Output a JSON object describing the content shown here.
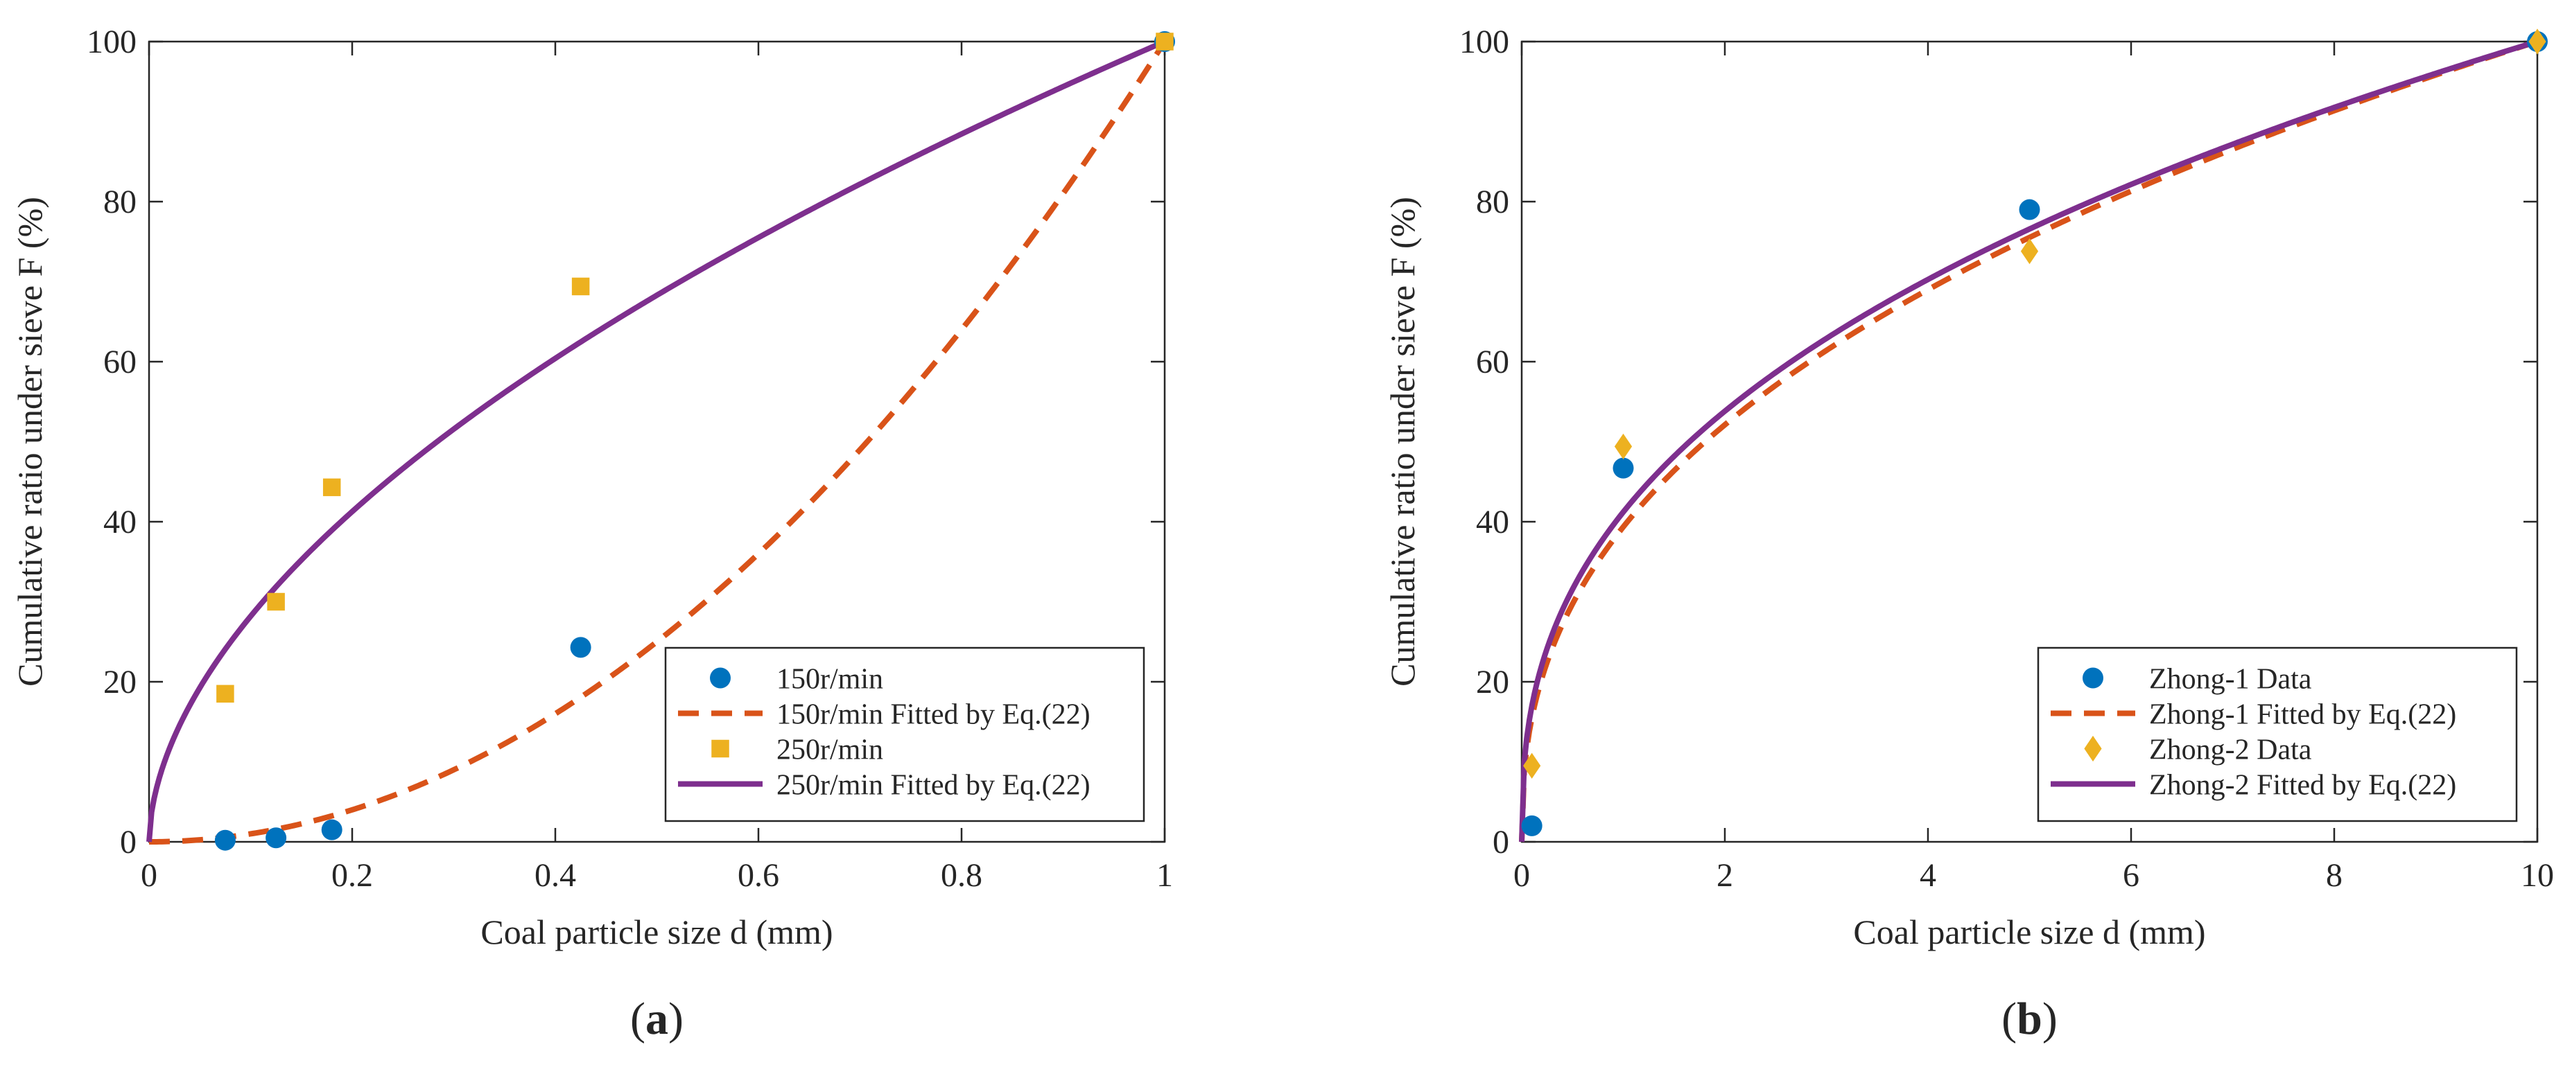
{
  "colors": {
    "blue": "#0072BD",
    "orange": "#D95319",
    "yellow": "#EDB120",
    "purple": "#7E2F8E"
  },
  "chart_data": [
    {
      "type": "line",
      "panel": "(a)",
      "panel_letter": "a",
      "xlabel": "Coal particle size d (mm)",
      "ylabel": "Cumulative ratio under sieve F (%)",
      "xlim": [
        0,
        1
      ],
      "ylim": [
        0,
        100
      ],
      "xticks": [
        0,
        0.2,
        0.4,
        0.6,
        0.8,
        1
      ],
      "xtick_labels": [
        "0",
        "0.2",
        "0.4",
        "0.6",
        "0.8",
        "1"
      ],
      "yticks": [
        0,
        20,
        40,
        60,
        80,
        100
      ],
      "ytick_labels": [
        "0",
        "20",
        "40",
        "60",
        "80",
        "100"
      ],
      "legend_position": "bottom-right",
      "series": [
        {
          "name": "150r/min",
          "kind": "scatter",
          "marker": "circle",
          "color": "#0072BD",
          "x": [
            0.075,
            0.125,
            0.18,
            0.425,
            1.0
          ],
          "y": [
            0.2,
            0.5,
            1.5,
            24.3,
            100
          ]
        },
        {
          "name": "150r/min Fitted by Eq.(22)",
          "kind": "line",
          "style": "dashed",
          "color": "#D95319",
          "model": "power",
          "xmax": 1,
          "exponent": 2.0
        },
        {
          "name": "250r/min",
          "kind": "scatter",
          "marker": "square",
          "color": "#EDB120",
          "x": [
            0.075,
            0.125,
            0.18,
            0.425,
            1.0
          ],
          "y": [
            18.5,
            30,
            44.3,
            69.4,
            100
          ]
        },
        {
          "name": "250r/min Fitted by Eq.(22)",
          "kind": "line",
          "style": "solid",
          "color": "#7E2F8E",
          "model": "power",
          "xmax": 1,
          "exponent": 0.55
        }
      ]
    },
    {
      "type": "line",
      "panel": "(b)",
      "panel_letter": "b",
      "xlabel": "Coal particle size d (mm)",
      "ylabel": "Cumulative ratio under sieve F (%)",
      "xlim": [
        0,
        10
      ],
      "ylim": [
        0,
        100
      ],
      "xticks": [
        0,
        2,
        4,
        6,
        8,
        10
      ],
      "xtick_labels": [
        "0",
        "2",
        "4",
        "6",
        "8",
        "10"
      ],
      "yticks": [
        0,
        20,
        40,
        60,
        80,
        100
      ],
      "ytick_labels": [
        "0",
        "20",
        "40",
        "60",
        "80",
        "100"
      ],
      "legend_position": "bottom-right",
      "series": [
        {
          "name": "Zhong-1 Data",
          "kind": "scatter",
          "marker": "circle",
          "color": "#0072BD",
          "x": [
            0.1,
            1,
            5,
            10
          ],
          "y": [
            2,
            46.7,
            79,
            100
          ]
        },
        {
          "name": "Zhong-1 Fitted by Eq.(22)",
          "kind": "line",
          "style": "dashed",
          "color": "#D95319",
          "model": "power",
          "xmax": 10,
          "exponent": 0.405
        },
        {
          "name": "Zhong-2 Data",
          "kind": "scatter",
          "marker": "diamond",
          "color": "#EDB120",
          "x": [
            0.1,
            1,
            5,
            10
          ],
          "y": [
            9.5,
            49.4,
            73.8,
            100
          ]
        },
        {
          "name": "Zhong-2 Fitted by Eq.(22)",
          "kind": "line",
          "style": "solid",
          "color": "#7E2F8E",
          "model": "power",
          "xmax": 10,
          "exponent": 0.385
        }
      ]
    }
  ]
}
